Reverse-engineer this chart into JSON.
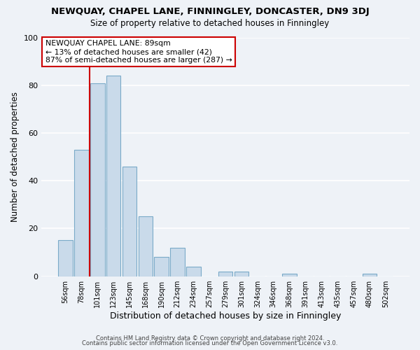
{
  "title": "NEWQUAY, CHAPEL LANE, FINNINGLEY, DONCASTER, DN9 3DJ",
  "subtitle": "Size of property relative to detached houses in Finningley",
  "xlabel": "Distribution of detached houses by size in Finningley",
  "ylabel": "Number of detached properties",
  "bar_labels": [
    "56sqm",
    "78sqm",
    "101sqm",
    "123sqm",
    "145sqm",
    "168sqm",
    "190sqm",
    "212sqm",
    "234sqm",
    "257sqm",
    "279sqm",
    "301sqm",
    "324sqm",
    "346sqm",
    "368sqm",
    "391sqm",
    "413sqm",
    "435sqm",
    "457sqm",
    "480sqm",
    "502sqm"
  ],
  "bar_values": [
    15,
    53,
    81,
    84,
    46,
    25,
    8,
    12,
    4,
    0,
    2,
    2,
    0,
    0,
    1,
    0,
    0,
    0,
    0,
    1,
    0
  ],
  "bar_color": "#c9daea",
  "bar_edge_color": "#7aaac8",
  "vline_x": 1.5,
  "vline_color": "#cc0000",
  "annotation_title": "NEWQUAY CHAPEL LANE: 89sqm",
  "annotation_line1": "← 13% of detached houses are smaller (42)",
  "annotation_line2": "87% of semi-detached houses are larger (287) →",
  "annotation_box_color": "#ffffff",
  "annotation_box_edge": "#cc0000",
  "ylim": [
    0,
    100
  ],
  "yticks": [
    0,
    20,
    40,
    60,
    80,
    100
  ],
  "footer1": "Contains HM Land Registry data © Crown copyright and database right 2024.",
  "footer2": "Contains public sector information licensed under the Open Government Licence v3.0.",
  "bg_color": "#eef2f7"
}
